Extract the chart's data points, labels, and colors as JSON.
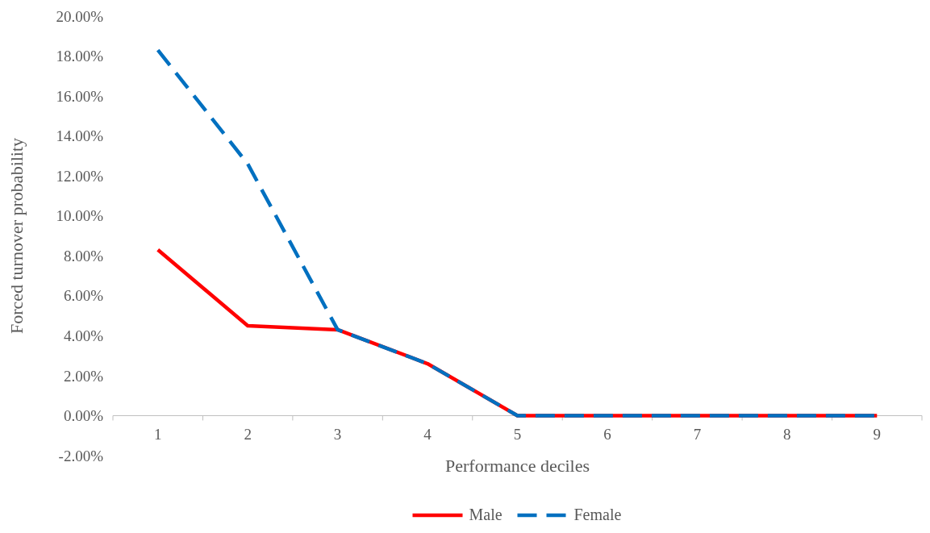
{
  "chart_data": {
    "type": "line",
    "xlabel": "Performance deciles",
    "ylabel": "Forced turnover probability",
    "categories": [
      "1",
      "2",
      "3",
      "4",
      "5",
      "6",
      "7",
      "8",
      "9"
    ],
    "series": [
      {
        "name": "Male",
        "color": "#ff0000",
        "line_style": "solid",
        "values": [
          8.3,
          4.5,
          4.3,
          2.6,
          0,
          0,
          0,
          0,
          0
        ]
      },
      {
        "name": "Female",
        "color": "#0070c0",
        "line_style": "dashed",
        "values": [
          18.3,
          12.6,
          4.3,
          2.6,
          0,
          0,
          0,
          0,
          0
        ]
      }
    ],
    "ylim": [
      -2,
      20
    ],
    "yticks": [
      {
        "value": -2,
        "label": "-2.00%"
      },
      {
        "value": 0,
        "label": "0.00%"
      },
      {
        "value": 2,
        "label": "2.00%"
      },
      {
        "value": 4,
        "label": "4.00%"
      },
      {
        "value": 6,
        "label": "6.00%"
      },
      {
        "value": 8,
        "label": "8.00%"
      },
      {
        "value": 10,
        "label": "10.00%"
      },
      {
        "value": 12,
        "label": "12.00%"
      },
      {
        "value": 14,
        "label": "14.00%"
      },
      {
        "value": 16,
        "label": "16.00%"
      },
      {
        "value": 18,
        "label": "18.00%"
      },
      {
        "value": 20,
        "label": "20.00%"
      }
    ],
    "grid": false,
    "legend": "bottom",
    "marker": "none"
  }
}
